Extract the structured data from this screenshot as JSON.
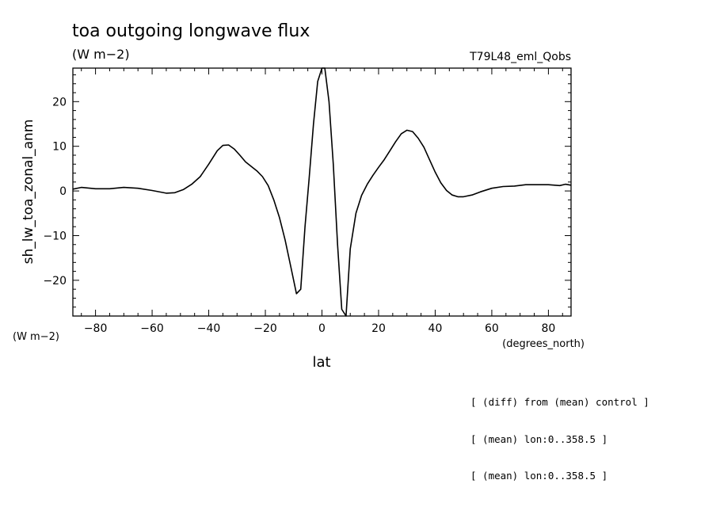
{
  "chart_data": {
    "type": "line",
    "title": "toa outgoing longwave flux",
    "subtitle": "(W m−2)",
    "run_label": "T79L48_eml_Qobs",
    "xlabel": "lat",
    "xunits": "(degrees_north)",
    "ylabel": "sh_lw_toa_zonal_anm",
    "yunits": "(W m−2)",
    "xlim": [
      -88,
      88
    ],
    "ylim": [
      -28,
      27.5
    ],
    "xticks": [
      -80,
      -60,
      -40,
      -20,
      0,
      20,
      40,
      60,
      80
    ],
    "yticks": [
      -20,
      -10,
      0,
      10,
      20
    ],
    "grid": false,
    "series": [
      {
        "x": [
          -88,
          -85,
          -80,
          -75,
          -70,
          -65,
          -60,
          -55,
          -52,
          -49,
          -46,
          -43,
          -40,
          -37,
          -35,
          -33,
          -31,
          -29,
          -27,
          -25,
          -23,
          -21,
          -19,
          -17,
          -15,
          -13,
          -11,
          -9,
          -7.5,
          -6,
          -4.5,
          -3,
          -1.5,
          0,
          1,
          2.5,
          4,
          5.5,
          7,
          8.5,
          10,
          12,
          14,
          16,
          18,
          20,
          22,
          24,
          26,
          28,
          30,
          32,
          34,
          36,
          38,
          40,
          42,
          44,
          46,
          48,
          50,
          53,
          56,
          60,
          64,
          68,
          72,
          76,
          80,
          84,
          86,
          88
        ],
        "y": [
          0.4,
          0.8,
          0.5,
          0.5,
          0.8,
          0.6,
          0.1,
          -0.5,
          -0.4,
          0.3,
          1.5,
          3.2,
          6.0,
          9.0,
          10.2,
          10.3,
          9.4,
          8.0,
          6.5,
          5.5,
          4.5,
          3.2,
          1.2,
          -2.0,
          -6.0,
          -11.0,
          -17.0,
          -23.0,
          -22.0,
          -8.0,
          3.0,
          15.0,
          24.5,
          27.5,
          27.5,
          20.0,
          6.0,
          -12.0,
          -26.5,
          -28.0,
          -13.0,
          -5.0,
          -1.0,
          1.5,
          3.5,
          5.3,
          7.0,
          9.0,
          11.0,
          12.8,
          13.6,
          13.3,
          11.8,
          9.8,
          7.0,
          4.2,
          1.8,
          0.1,
          -0.9,
          -1.3,
          -1.3,
          -0.9,
          -0.2,
          0.6,
          1.0,
          1.1,
          1.4,
          1.4,
          1.4,
          1.2,
          1.5,
          1.3
        ]
      }
    ]
  },
  "notes": [
    "[ (diff) from (mean) control ]",
    "[ (mean) lon:0..358.5 ]",
    "[ (mean) lon:0..358.5 ]"
  ]
}
